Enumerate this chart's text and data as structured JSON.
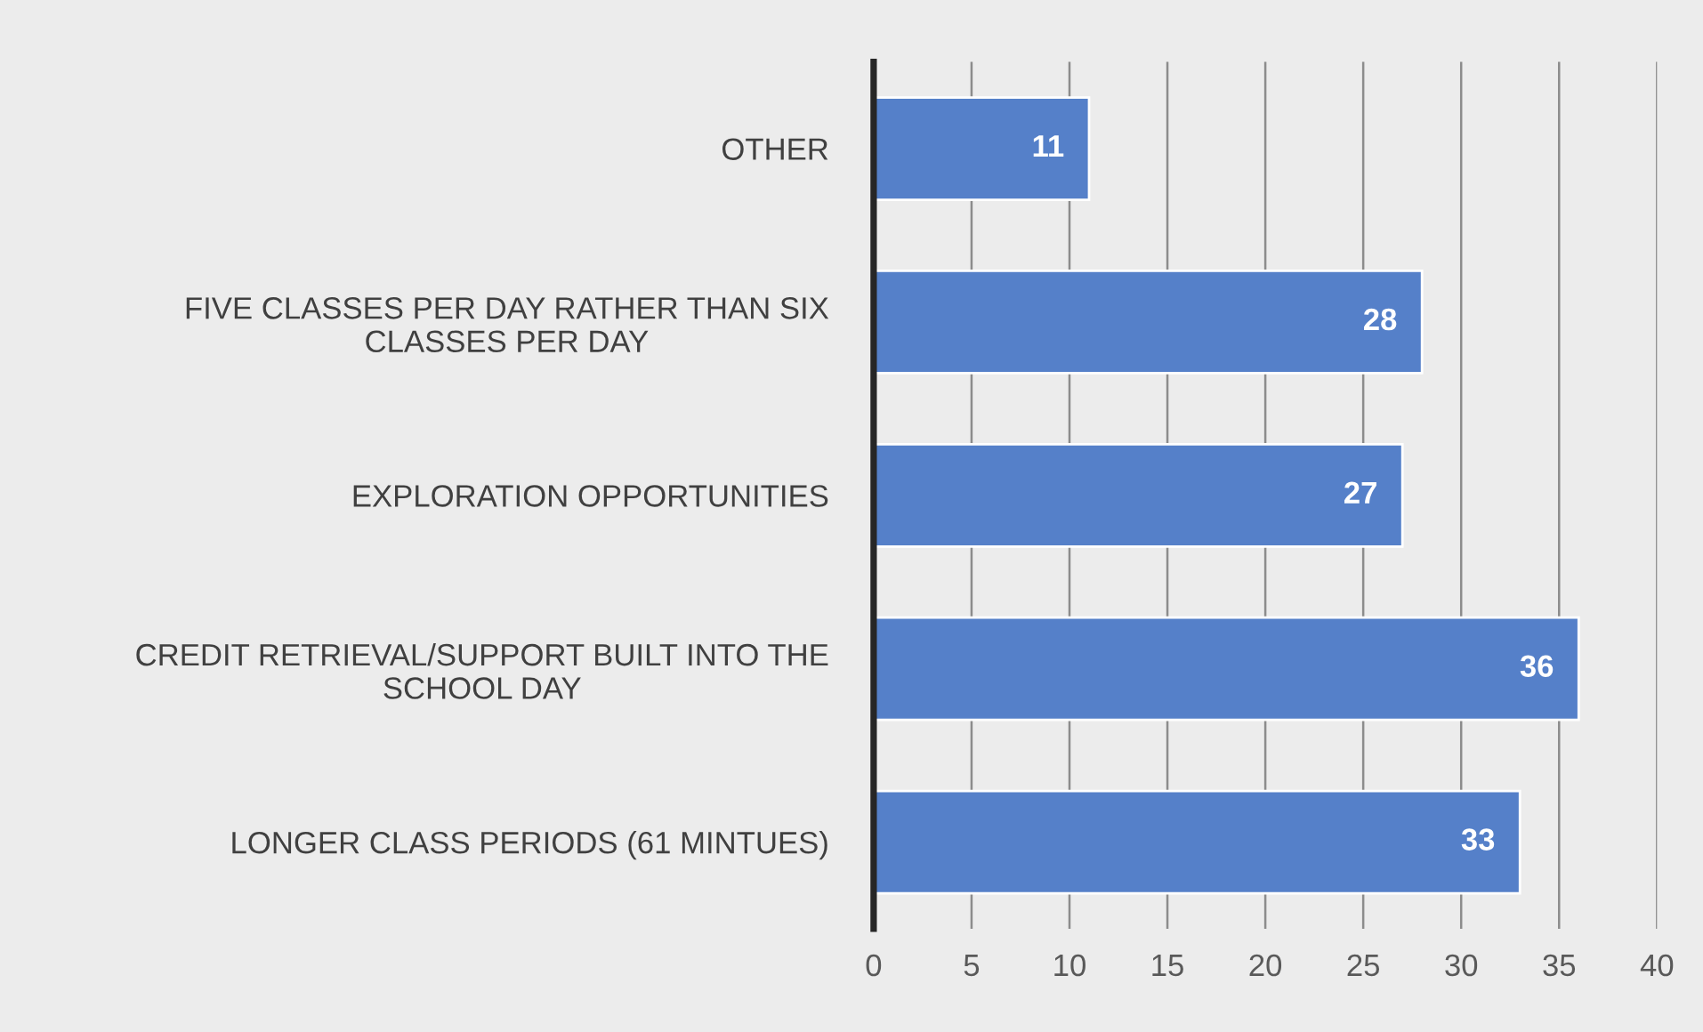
{
  "chart_data": {
    "type": "bar",
    "orientation": "horizontal",
    "categories": [
      "OTHER",
      "FIVE CLASSES PER DAY RATHER THAN SIX\nCLASSES PER DAY",
      "EXPLORATION OPPORTUNITIES",
      "CREDIT RETRIEVAL/SUPPORT BUILT INTO THE\nSCHOOL DAY",
      "LONGER CLASS PERIODS (61 MINTUES)"
    ],
    "values": [
      11,
      28,
      27,
      36,
      33
    ],
    "color": "#5580c9",
    "xlim": [
      0,
      40
    ],
    "xticks": [
      0,
      5,
      10,
      15,
      20,
      25,
      30,
      35,
      40
    ],
    "grid": "x",
    "data_labels": true
  }
}
